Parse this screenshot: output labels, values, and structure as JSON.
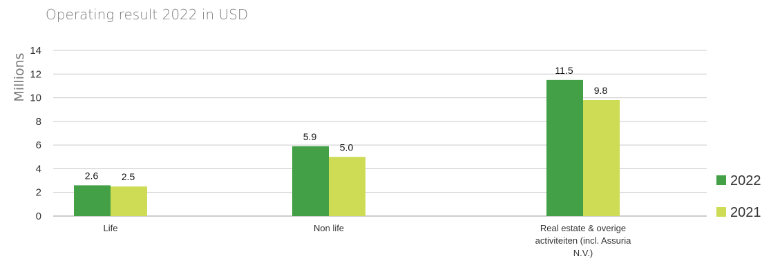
{
  "chart_data": {
    "type": "bar",
    "title": "Operating result 2022 in USD",
    "ylabel": "Millions",
    "xlabel": "",
    "ylim": [
      0,
      14
    ],
    "yticks": [
      0,
      2,
      4,
      6,
      8,
      10,
      12,
      14
    ],
    "grid": true,
    "legend_position": "right",
    "categories": [
      [
        "Life"
      ],
      [
        "Non life"
      ],
      [
        "Real estate & overige",
        "activiteiten (incl. Assuria",
        "N.V.)"
      ]
    ],
    "series": [
      {
        "name": "2022",
        "color": "#43a047",
        "values": [
          2.6,
          5.9,
          11.5
        ],
        "labels": [
          "2.6",
          "5.9",
          "11.5"
        ]
      },
      {
        "name": "2021",
        "color": "#cddc54",
        "values": [
          2.5,
          5.0,
          9.8
        ],
        "labels": [
          "2.5",
          "5.0",
          "9.8"
        ]
      }
    ]
  }
}
